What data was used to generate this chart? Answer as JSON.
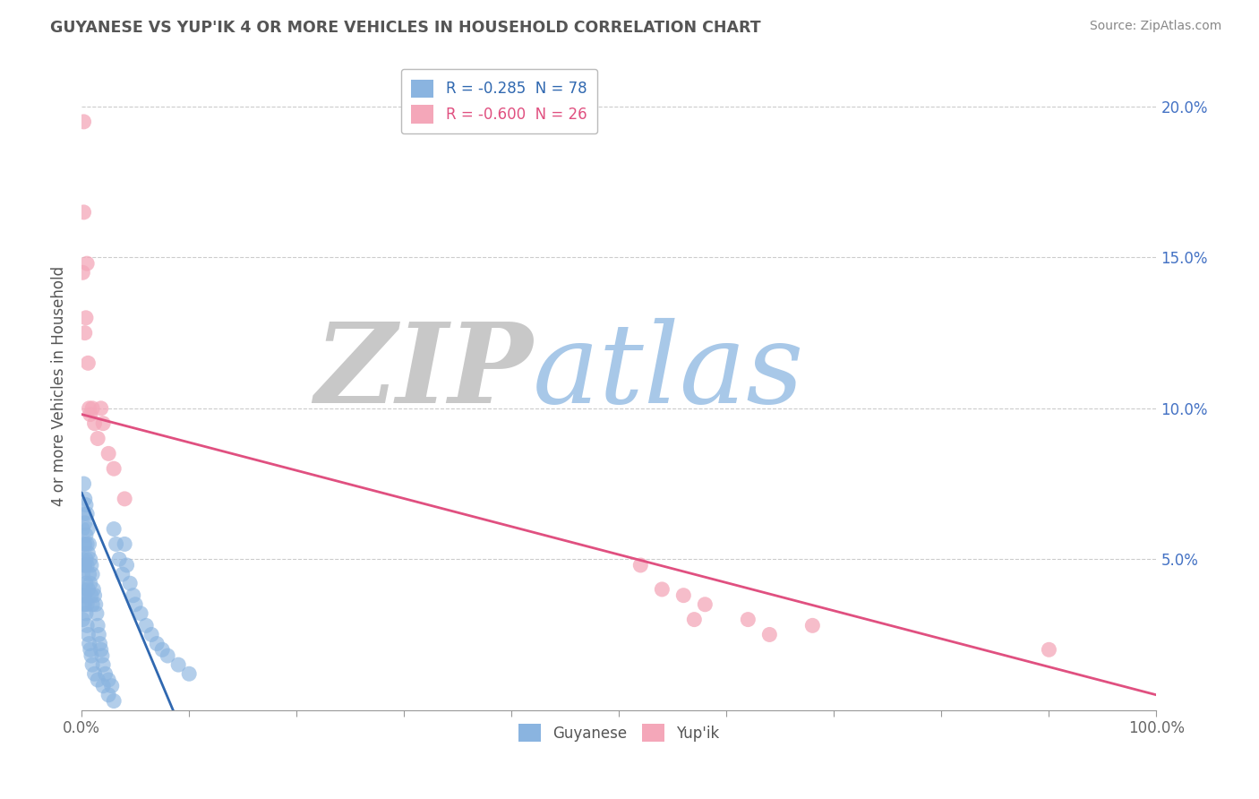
{
  "title": "GUYANESE VS YUP'IK 4 OR MORE VEHICLES IN HOUSEHOLD CORRELATION CHART",
  "source": "Source: ZipAtlas.com",
  "ylabel": "4 or more Vehicles in Household",
  "ytick_values": [
    0.0,
    0.05,
    0.1,
    0.15,
    0.2
  ],
  "ytick_labels": [
    "",
    "5.0%",
    "10.0%",
    "15.0%",
    "20.0%"
  ],
  "xlim": [
    0.0,
    1.0
  ],
  "ylim": [
    0.0,
    0.215
  ],
  "legend_entry1": "R = -0.285  N = 78",
  "legend_entry2": "R = -0.600  N = 26",
  "color_blue": "#8ab4e0",
  "color_pink": "#f4a7b9",
  "color_line_blue": "#3068b0",
  "color_line_pink": "#e05080",
  "watermark_ZIP": "ZIP",
  "watermark_atlas": "atlas",
  "watermark_color_ZIP": "#c8c8c8",
  "watermark_color_atlas": "#a8c8e8",
  "guyanese_x": [
    0.001,
    0.001,
    0.001,
    0.001,
    0.002,
    0.002,
    0.002,
    0.002,
    0.002,
    0.003,
    0.003,
    0.003,
    0.003,
    0.003,
    0.004,
    0.004,
    0.004,
    0.004,
    0.005,
    0.005,
    0.005,
    0.005,
    0.006,
    0.006,
    0.006,
    0.007,
    0.007,
    0.008,
    0.008,
    0.009,
    0.009,
    0.01,
    0.01,
    0.011,
    0.012,
    0.013,
    0.014,
    0.015,
    0.016,
    0.017,
    0.018,
    0.019,
    0.02,
    0.022,
    0.025,
    0.028,
    0.03,
    0.032,
    0.035,
    0.038,
    0.04,
    0.042,
    0.045,
    0.048,
    0.05,
    0.055,
    0.06,
    0.065,
    0.07,
    0.075,
    0.08,
    0.09,
    0.1,
    0.001,
    0.002,
    0.003,
    0.004,
    0.005,
    0.006,
    0.007,
    0.008,
    0.009,
    0.01,
    0.012,
    0.015,
    0.02,
    0.025,
    0.03
  ],
  "guyanese_y": [
    0.06,
    0.05,
    0.045,
    0.04,
    0.075,
    0.065,
    0.055,
    0.048,
    0.035,
    0.07,
    0.062,
    0.055,
    0.048,
    0.038,
    0.068,
    0.058,
    0.05,
    0.042,
    0.065,
    0.055,
    0.048,
    0.035,
    0.06,
    0.052,
    0.04,
    0.055,
    0.045,
    0.05,
    0.042,
    0.048,
    0.038,
    0.045,
    0.035,
    0.04,
    0.038,
    0.035,
    0.032,
    0.028,
    0.025,
    0.022,
    0.02,
    0.018,
    0.015,
    0.012,
    0.01,
    0.008,
    0.06,
    0.055,
    0.05,
    0.045,
    0.055,
    0.048,
    0.042,
    0.038,
    0.035,
    0.032,
    0.028,
    0.025,
    0.022,
    0.02,
    0.018,
    0.015,
    0.012,
    0.03,
    0.038,
    0.035,
    0.032,
    0.028,
    0.025,
    0.022,
    0.02,
    0.018,
    0.015,
    0.012,
    0.01,
    0.008,
    0.005,
    0.003
  ],
  "yupik_x": [
    0.001,
    0.002,
    0.002,
    0.003,
    0.004,
    0.005,
    0.006,
    0.007,
    0.008,
    0.01,
    0.012,
    0.015,
    0.018,
    0.02,
    0.025,
    0.03,
    0.04,
    0.52,
    0.54,
    0.56,
    0.57,
    0.58,
    0.62,
    0.64,
    0.68,
    0.9
  ],
  "yupik_y": [
    0.145,
    0.195,
    0.165,
    0.125,
    0.13,
    0.148,
    0.115,
    0.1,
    0.098,
    0.1,
    0.095,
    0.09,
    0.1,
    0.095,
    0.085,
    0.08,
    0.07,
    0.048,
    0.04,
    0.038,
    0.03,
    0.035,
    0.03,
    0.025,
    0.028,
    0.02
  ],
  "blue_line_x": [
    0.0,
    0.085
  ],
  "blue_line_y": [
    0.072,
    0.0
  ],
  "pink_line_x": [
    0.0,
    1.0
  ],
  "pink_line_y": [
    0.098,
    0.005
  ]
}
